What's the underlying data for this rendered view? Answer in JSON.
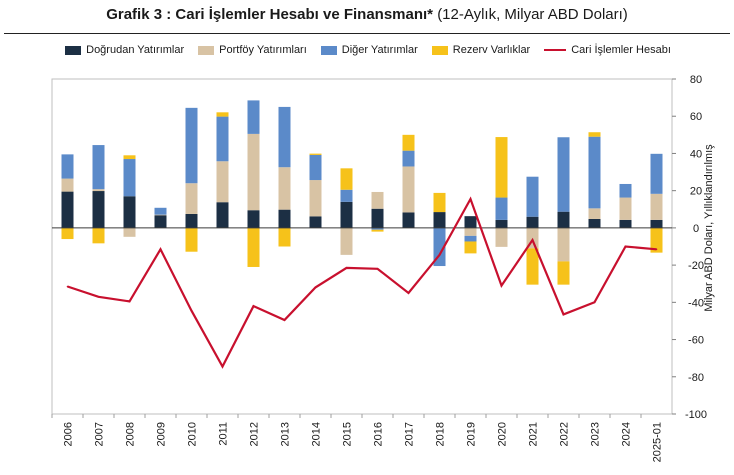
{
  "title_main": "Grafik 3 : Cari İşlemler Hesabı ve Finansmanı*",
  "title_sub": "(12-Aylık, Milyar ABD Doları)",
  "chart_data": {
    "type": "bar",
    "stacked": true,
    "categories": [
      "2006",
      "2007",
      "2008",
      "2009",
      "2010",
      "2011",
      "2012",
      "2013",
      "2014",
      "2015",
      "2016",
      "2017",
      "2018",
      "2019",
      "2020",
      "2021",
      "2022",
      "2023",
      "2024",
      "2025-01"
    ],
    "ylabel": "Milyar ABD Doları, Yıllıklandırılmış",
    "ylim": [
      -100,
      80
    ],
    "yticks": [
      -100,
      -80,
      -60,
      -40,
      -20,
      0,
      20,
      40,
      60,
      80
    ],
    "y_axis_side": "right",
    "legend_position": "top",
    "grid": false,
    "series": [
      {
        "name": "Doğrudan Yatırımlar",
        "type": "bar",
        "color": "#1c2f44",
        "values": [
          19.5,
          19.8,
          17.0,
          6.8,
          7.5,
          13.8,
          9.5,
          9.8,
          6.2,
          14.0,
          10.3,
          8.3,
          8.5,
          6.3,
          4.3,
          6.0,
          8.7,
          4.8,
          4.3,
          4.3
        ]
      },
      {
        "name": "Portföy Yatırımları",
        "type": "bar",
        "color": "#d8c3a4",
        "values": [
          7.0,
          1.0,
          -4.8,
          0.3,
          16.5,
          22.0,
          41.0,
          22.8,
          19.5,
          -14.5,
          9.0,
          24.7,
          0.0,
          -4.3,
          -10.2,
          -11.0,
          -18.0,
          5.7,
          12.0,
          14.0
        ]
      },
      {
        "name": "Diğer Yatırımlar",
        "type": "bar",
        "color": "#5b8ac9",
        "values": [
          13.0,
          23.7,
          20.0,
          3.7,
          40.5,
          24.0,
          18.0,
          32.4,
          13.5,
          6.5,
          -1.0,
          8.5,
          -20.5,
          -3.0,
          12.0,
          21.5,
          40.0,
          38.5,
          7.3,
          21.5
        ]
      },
      {
        "name": "Rezerv Varlıklar",
        "type": "bar",
        "color": "#f6c21a",
        "values": [
          -6.0,
          -8.3,
          2.0,
          0.0,
          -12.8,
          2.3,
          -21.0,
          -10.0,
          0.7,
          11.5,
          -1.0,
          8.5,
          10.3,
          -6.4,
          32.5,
          -19.5,
          -12.5,
          2.4,
          0.0,
          -13.3
        ]
      },
      {
        "name": "Cari İşlemler Hesabı",
        "type": "line",
        "color": "#c8102e",
        "values": [
          -31.5,
          -37.0,
          -39.5,
          -11.5,
          -44.5,
          -74.5,
          -42.0,
          -49.5,
          -32.0,
          -21.5,
          -22.0,
          -35.0,
          -14.5,
          15.5,
          -31.0,
          -6.5,
          -46.5,
          -40.0,
          -10.0,
          -11.5
        ]
      }
    ]
  }
}
